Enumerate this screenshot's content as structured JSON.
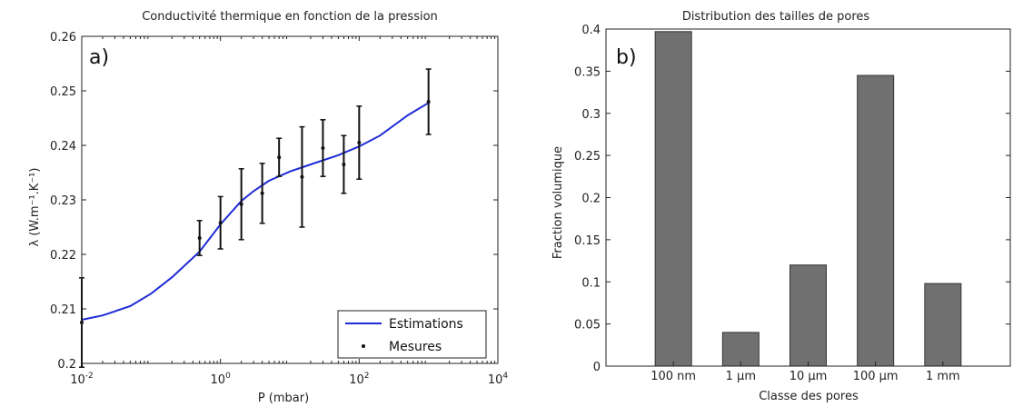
{
  "chart_data": [
    {
      "type": "line",
      "panel_label": "a)",
      "title": "Conductivité thermique en fonction de la pression",
      "xlabel": "P (mbar)",
      "ylabel": "λ (W.m⁻¹.K⁻¹)",
      "xscale": "log",
      "xlim": [
        0.01,
        10000
      ],
      "ylim": [
        0.2,
        0.26
      ],
      "xticks": [
        0.01,
        1,
        100,
        10000
      ],
      "xtick_labels": [
        {
          "base": "10",
          "exp": "-2"
        },
        {
          "base": "10",
          "exp": "0"
        },
        {
          "base": "10",
          "exp": "2"
        },
        {
          "base": "10",
          "exp": "4"
        }
      ],
      "yticks": [
        0.2,
        0.21,
        0.22,
        0.23,
        0.24,
        0.25,
        0.26
      ],
      "ytick_labels": [
        "0.2",
        "0.21",
        "0.22",
        "0.23",
        "0.24",
        "0.25",
        "0.26"
      ],
      "grid": false,
      "legend": "bottom-right",
      "series": [
        {
          "name": "Estimations",
          "kind": "line",
          "color": "#1f2bd6",
          "x": [
            0.01,
            0.02,
            0.05,
            0.1,
            0.2,
            0.5,
            1,
            2,
            3,
            5,
            10,
            20,
            50,
            100,
            200,
            500,
            1000
          ],
          "y": [
            0.208,
            0.2088,
            0.2105,
            0.2128,
            0.2158,
            0.2205,
            0.2255,
            0.2298,
            0.2316,
            0.2335,
            0.2352,
            0.2365,
            0.2382,
            0.2398,
            0.2418,
            0.2455,
            0.2478
          ]
        },
        {
          "name": "Mesures",
          "kind": "errorbar",
          "color": "#111111",
          "x": [
            0.01,
            0.5,
            1,
            2,
            4,
            7,
            15,
            30,
            60,
            100,
            1000
          ],
          "y": [
            0.2075,
            0.223,
            0.2258,
            0.2292,
            0.2312,
            0.2378,
            0.2342,
            0.2395,
            0.2365,
            0.2405,
            0.248
          ],
          "err": [
            0.0082,
            0.0032,
            0.0048,
            0.0065,
            0.0055,
            0.0035,
            0.0092,
            0.0052,
            0.0053,
            0.0067,
            0.006
          ]
        }
      ]
    },
    {
      "type": "bar",
      "panel_label": "b)",
      "title": "Distribution des tailles de pores",
      "xlabel": "Classe des pores",
      "ylabel": "Fraction volumique",
      "ylim": [
        0,
        0.4
      ],
      "yticks": [
        0,
        0.05,
        0.1,
        0.15,
        0.2,
        0.25,
        0.3,
        0.35,
        0.4
      ],
      "ytick_labels": [
        "0",
        "0.05",
        "0.1",
        "0.15",
        "0.2",
        "0.25",
        "0.3",
        "0.35",
        "0.4"
      ],
      "grid": false,
      "bar_color": "#707070",
      "categories": [
        "100 nm",
        "1 µm",
        "10 µm",
        "100 µm",
        "1 mm"
      ],
      "values": [
        0.397,
        0.04,
        0.12,
        0.345,
        0.098
      ]
    }
  ]
}
